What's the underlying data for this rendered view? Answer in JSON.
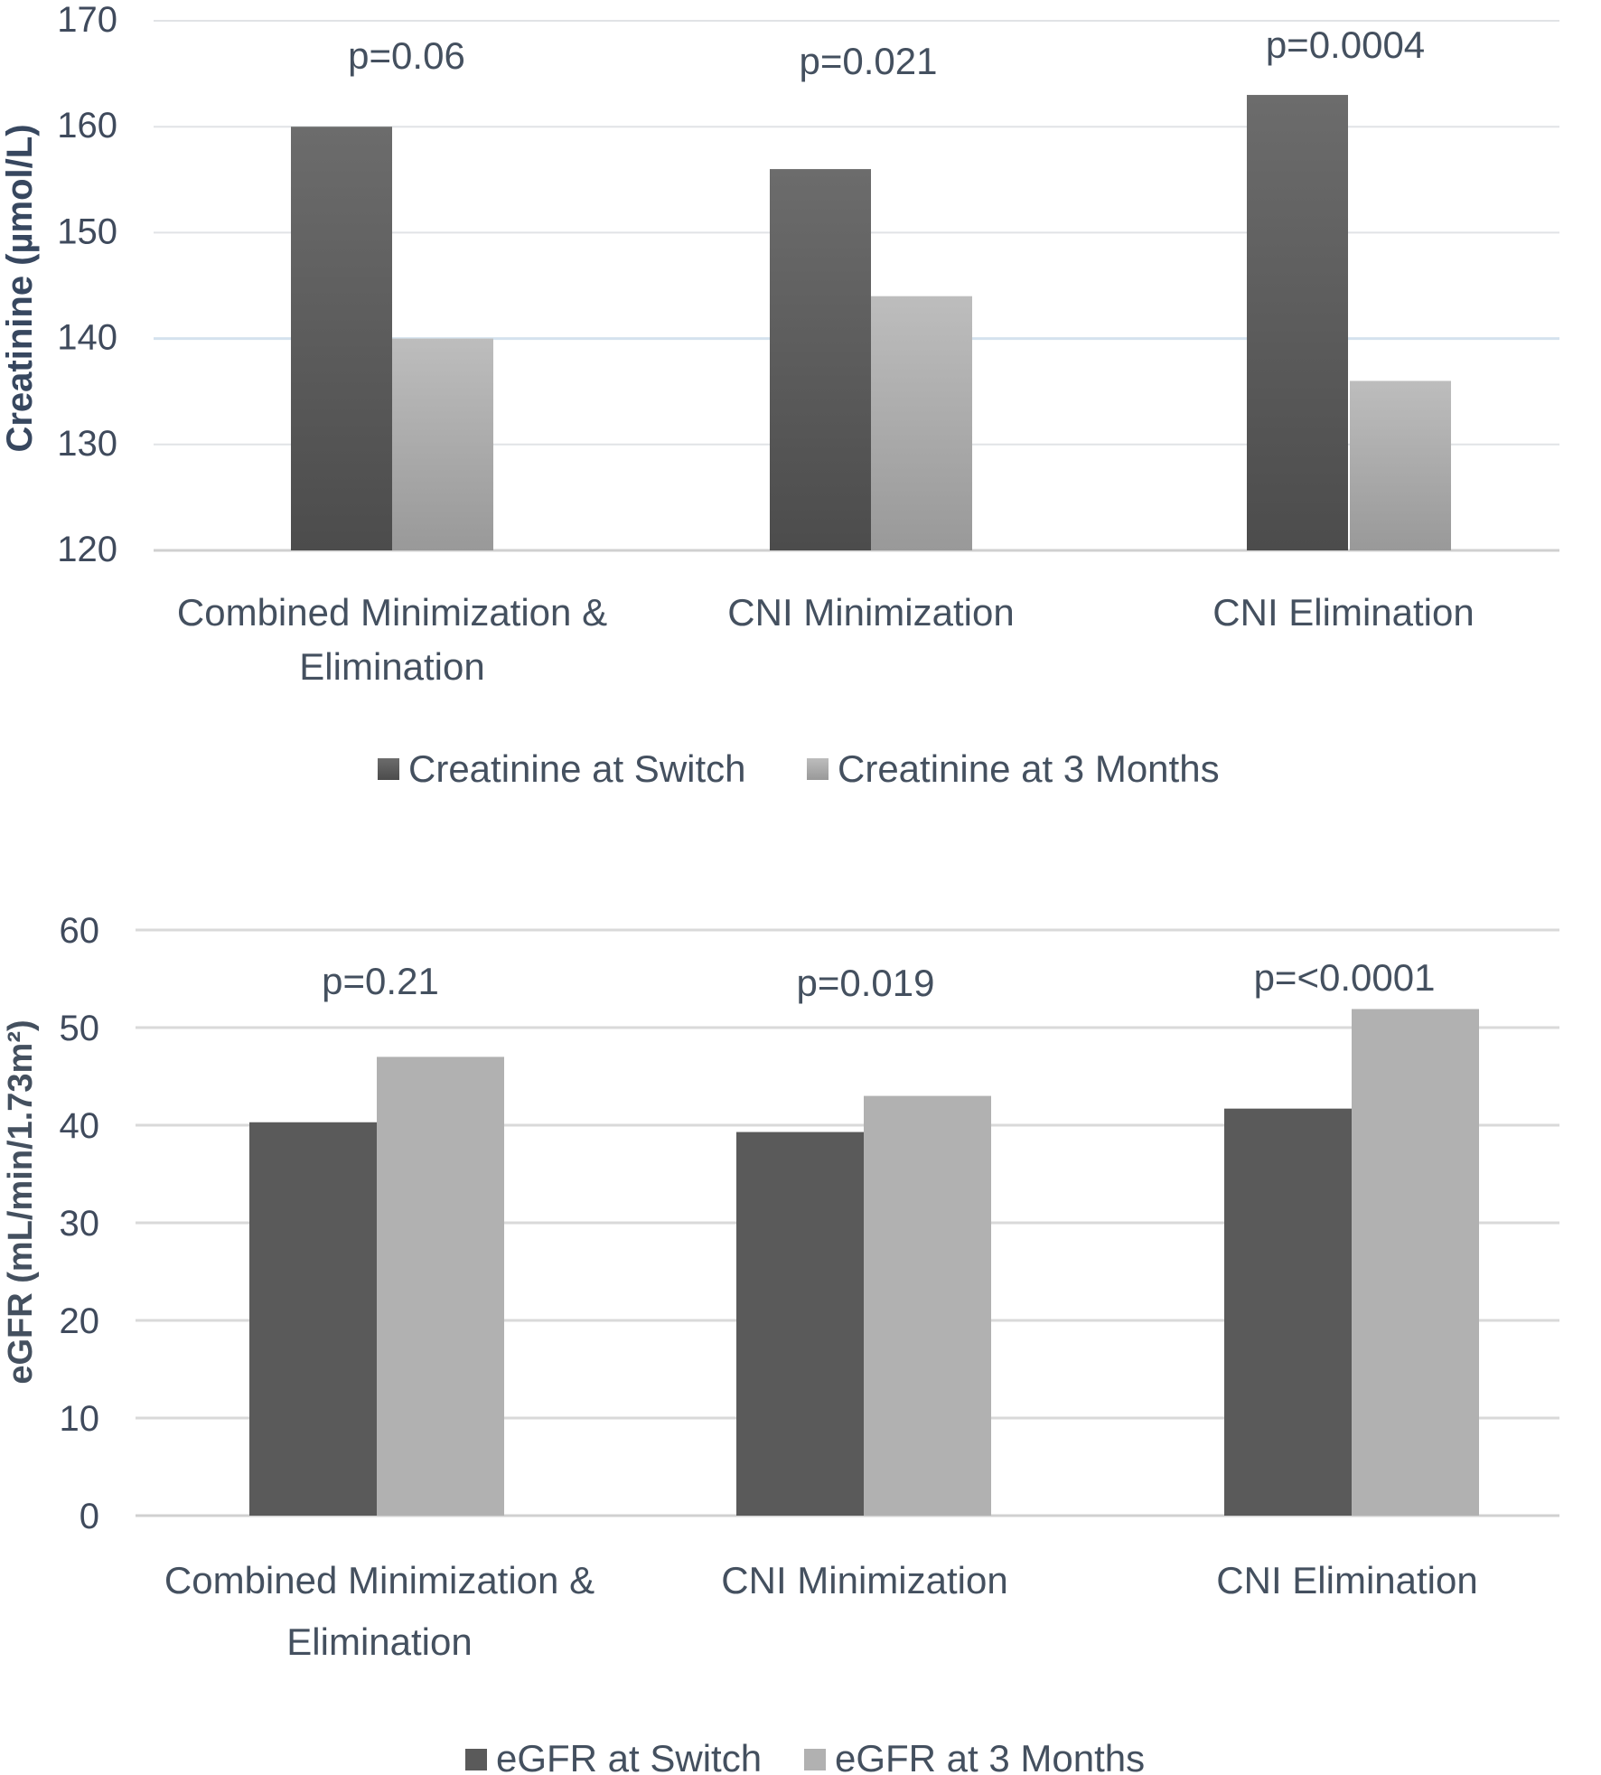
{
  "chart_data": [
    {
      "type": "bar",
      "categories": [
        [
          "Combined Minimization &",
          "Elimination"
        ],
        [
          "CNI Minimization"
        ],
        [
          "CNI Elimination"
        ]
      ],
      "series": [
        {
          "name": "Creatinine at Switch",
          "values": [
            160,
            156,
            163
          ]
        },
        {
          "name": "Creatinine at 3 Months",
          "values": [
            140,
            144,
            136
          ]
        }
      ],
      "annotations": [
        "p=0.06",
        "p=0.021",
        "p=0.0004"
      ],
      "ylabel": "Creatinine (µmol/L)",
      "ylim": [
        120,
        170
      ],
      "yticks": [
        "120",
        "130",
        "140",
        "150",
        "160",
        "170"
      ],
      "legend_position": "bottom-center",
      "grid": true,
      "colors": [
        "#5e5e5e",
        "#adadad"
      ]
    },
    {
      "type": "bar",
      "categories": [
        [
          "Combined Minimization &",
          "Elimination"
        ],
        [
          "CNI Minimization"
        ],
        [
          "CNI Elimination"
        ]
      ],
      "series": [
        {
          "name": "eGFR at Switch",
          "values": [
            40.3,
            39.3,
            41.7
          ]
        },
        {
          "name": "eGFR at 3 Months",
          "values": [
            47,
            43,
            51.9
          ]
        }
      ],
      "annotations": [
        "p=0.21",
        "p=0.019",
        "p=<0.0001"
      ],
      "ylabel": "eGFR (mL/min/1.73m²)",
      "ylim": [
        0,
        60
      ],
      "yticks": [
        "0",
        "10",
        "20",
        "30",
        "40",
        "50",
        "60"
      ],
      "legend_position": "bottom-center",
      "grid": true,
      "colors": [
        "#5a5a5a",
        "#b1b1b1"
      ]
    }
  ]
}
